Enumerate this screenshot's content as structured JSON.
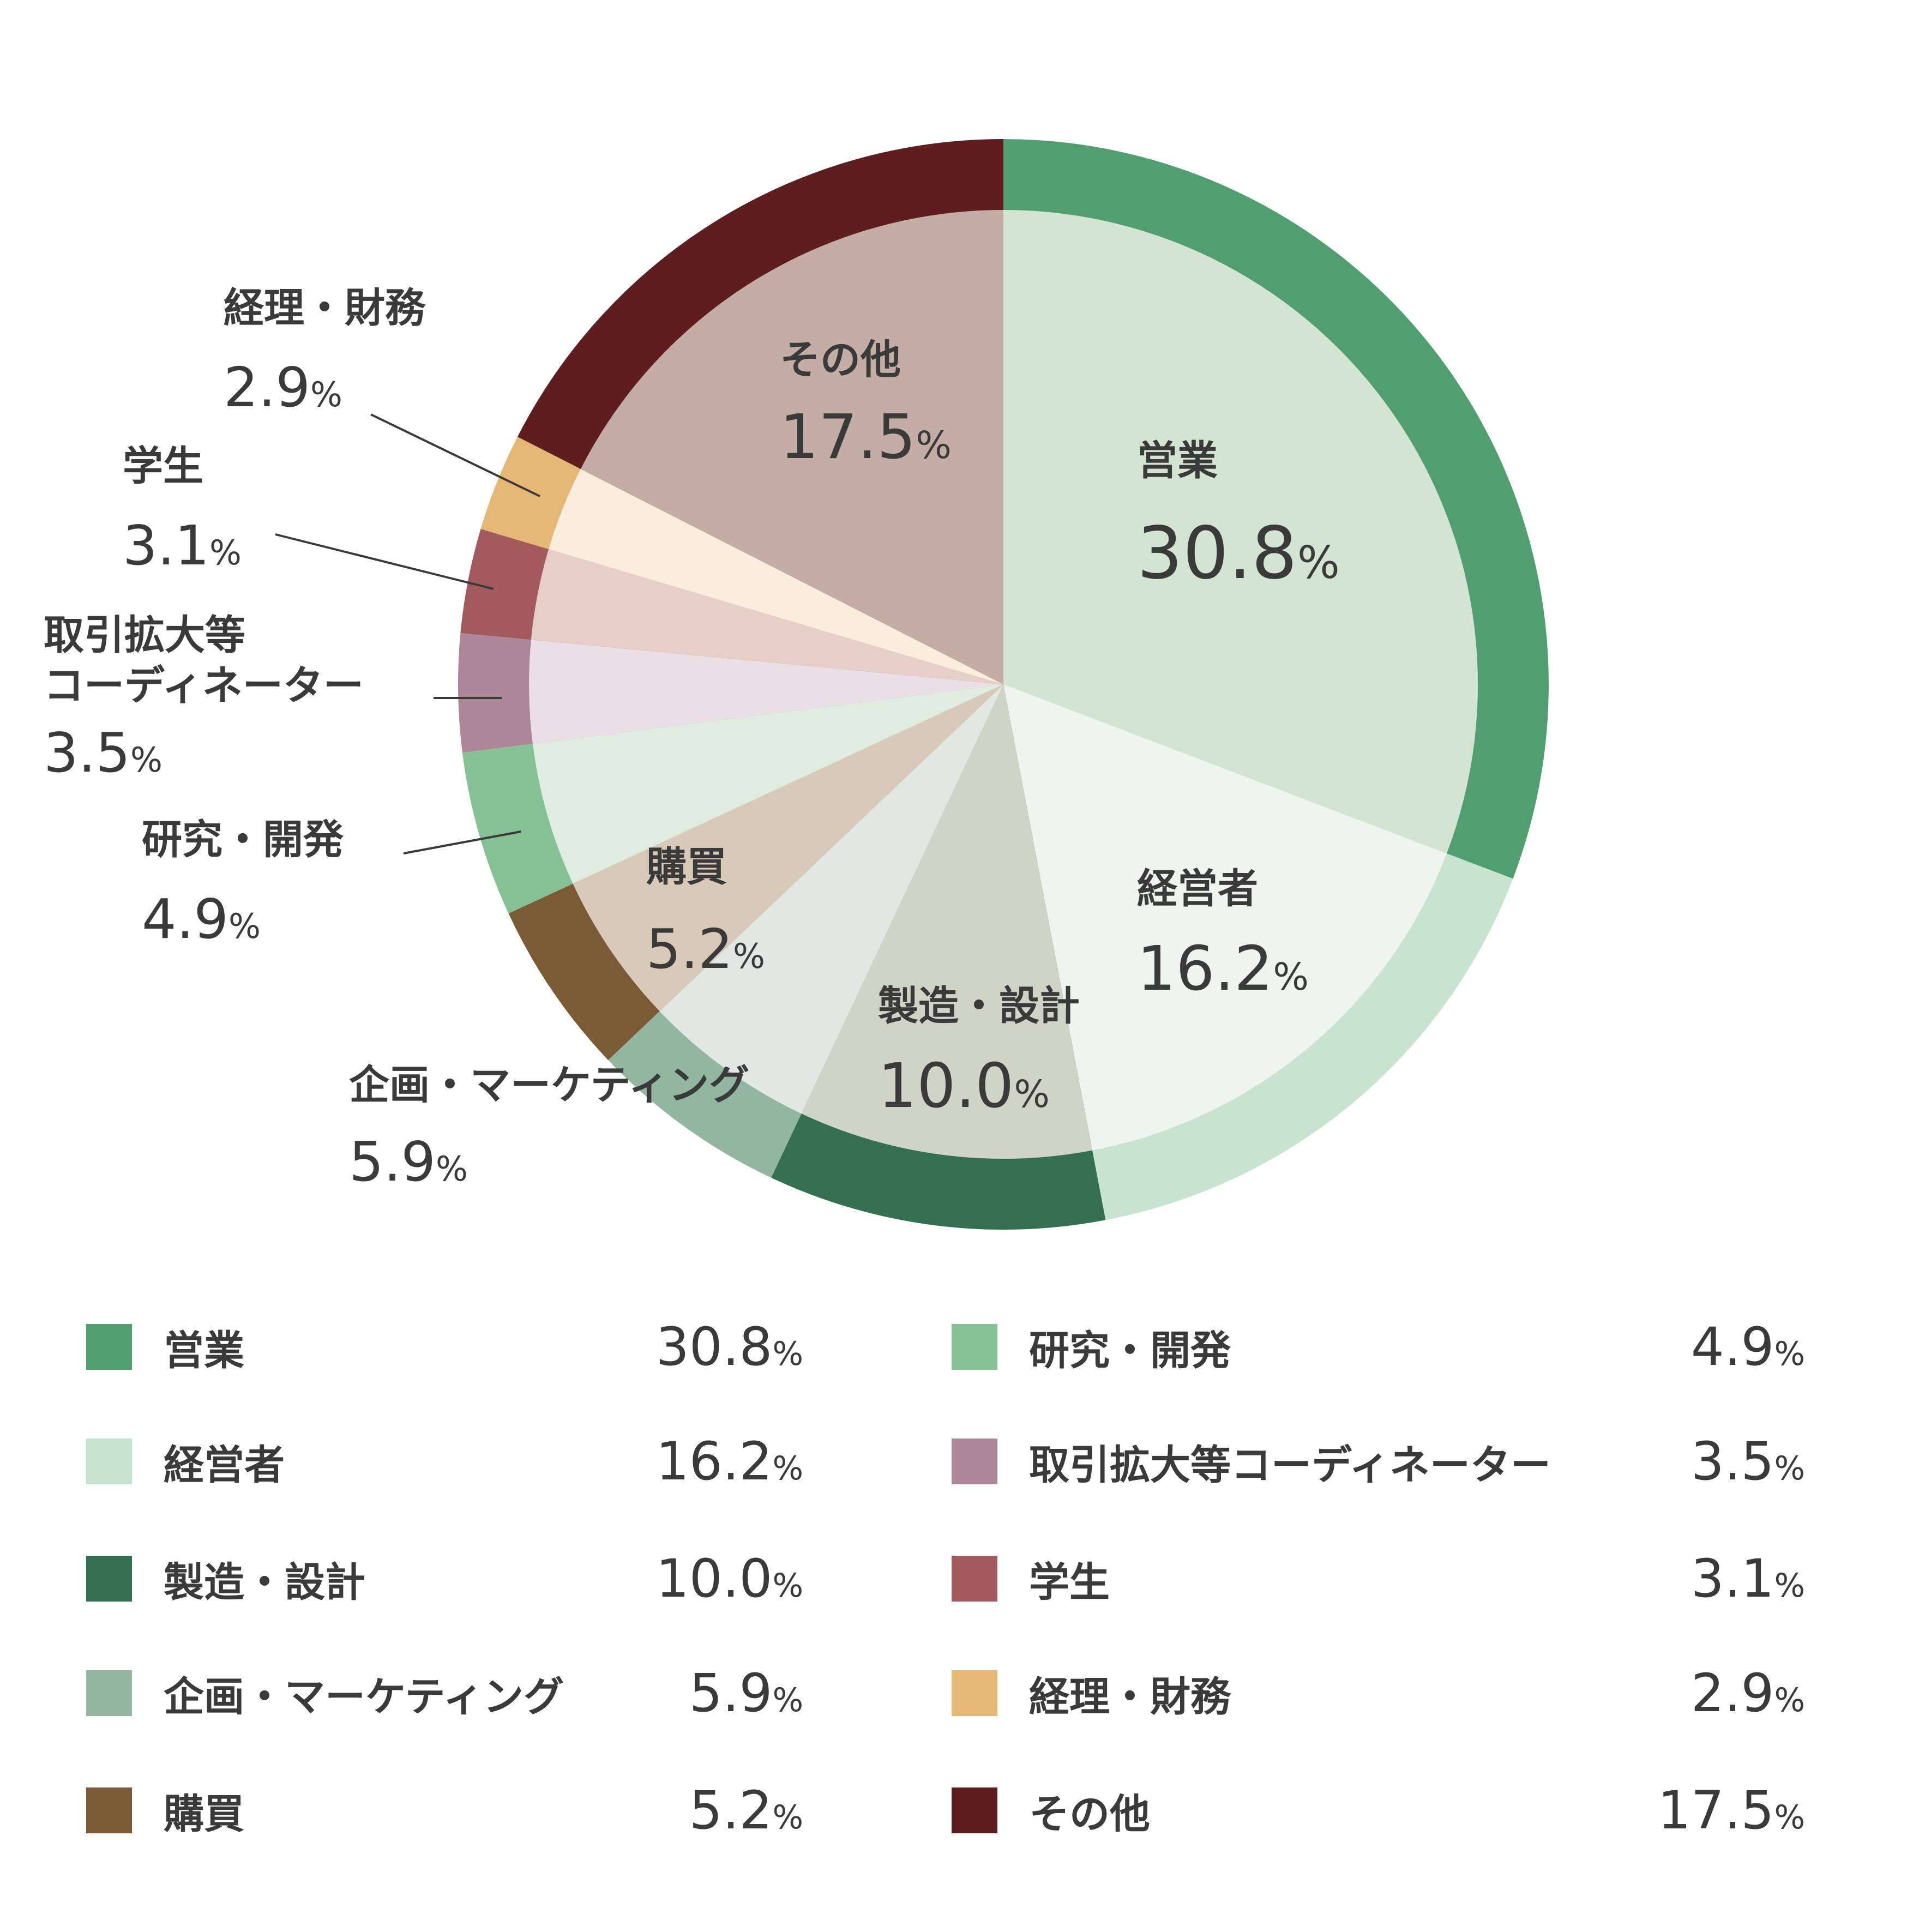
{
  "chart_data": {
    "type": "pie",
    "categories": [
      "営業",
      "経営者",
      "製造・設計",
      "企画・マーケティング",
      "購買",
      "研究・開発",
      "取引拡大等コーディネーター",
      "学生",
      "経理・財務",
      "その他"
    ],
    "values": [
      30.8,
      16.2,
      10.0,
      5.9,
      5.2,
      4.9,
      3.5,
      3.1,
      2.9,
      17.5
    ],
    "value_labels": [
      "30.8%",
      "16.2%",
      "10.0%",
      "5.9%",
      "5.2%",
      "4.9%",
      "3.5%",
      "3.1%",
      "2.9%",
      "17.5%"
    ],
    "chart_labels": [
      "営業",
      "経営者",
      "製造・設計",
      "企画・マーケティング",
      "購買",
      "研究・開発",
      "取引拡大等\nコーディネーター",
      "学生",
      "経理・財務",
      "その他"
    ],
    "outer_colors": [
      "#519f70",
      "#c8e3d0",
      "#33704f",
      "#93b6a1",
      "#7b5b36",
      "#86c196",
      "#ad8798",
      "#a35a5d",
      "#e5b775",
      "#5e1d1e"
    ],
    "inner_colors": [
      "#d3e4d2",
      "#edf5ee",
      "#d0d4c6",
      "#e1e7e2",
      "#d9c9b8",
      "#e1ece1",
      "#e9dfe4",
      "#e7cec9",
      "#f9eedd",
      "#c4ada5"
    ],
    "legend": "bottom"
  }
}
